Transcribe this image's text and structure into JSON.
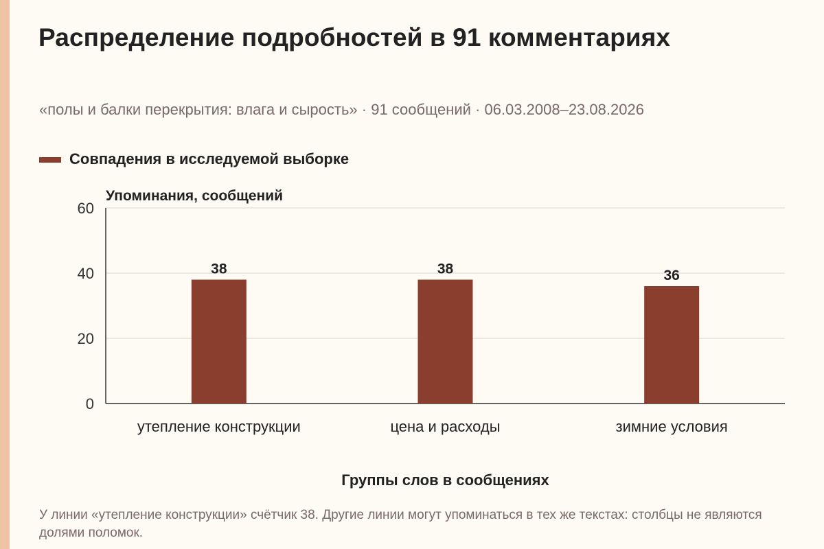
{
  "title": "Распределение подробностей в 91 комментариях",
  "subtitle": "«полы и балки перекрытия: влага и сырость» · 91 сообщений · 06.03.2008–23.08.2026",
  "footnote": "У линии «утепление конструкции» счётчик 38. Другие линии могут упоминаться в тех же текстах: столбцы не являются долями поломок.",
  "colors": {
    "bar": "#8a3e2e",
    "accent": "#efc3a6",
    "grid": "#dcd6cf",
    "axis": "#333333"
  },
  "chart_data": {
    "type": "bar",
    "categories": [
      "утепление конструкции",
      "цена и расходы",
      "зимние условия"
    ],
    "series": [
      {
        "name": "Совпадения в исследуемой выборке",
        "values": [
          38,
          38,
          36
        ]
      }
    ],
    "ylabel": "Упоминания, сообщений",
    "xlabel": "Группы слов в сообщениях",
    "ylim": [
      0,
      60
    ],
    "yticks": [
      0,
      20,
      40,
      60
    ],
    "grid": true,
    "legend": "top-left",
    "data_labels": true
  }
}
